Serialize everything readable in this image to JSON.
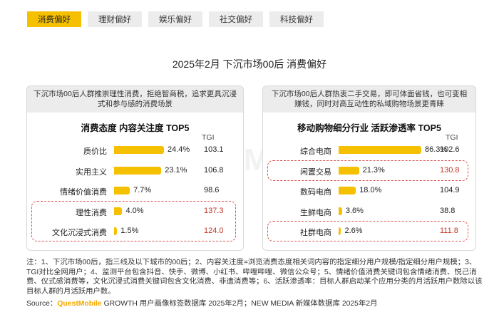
{
  "tabs": [
    {
      "label": "消费偏好",
      "active": true
    },
    {
      "label": "理财偏好",
      "active": false
    },
    {
      "label": "娱乐偏好",
      "active": false
    },
    {
      "label": "社交偏好",
      "active": false
    },
    {
      "label": "科技偏好",
      "active": false
    }
  ],
  "page_title": "2025年2月 下沉市场00后 消费偏好",
  "watermark": "QUESTMOBILE",
  "colors": {
    "accent": "#f5c000",
    "highlight": "#c0392b",
    "panel_header": "#ececec"
  },
  "chart_data": [
    {
      "type": "bar",
      "header": "下沉市场00后人群推崇理性消费，拒绝智商税，追求更具沉浸式和参与感的消费场景",
      "title": "消费态度 内容关注度 TOP5",
      "tgi_label": "TGI",
      "categories": [
        "质价比",
        "实用主义",
        "情绪价值消费",
        "理性消费",
        "文化沉浸式消费"
      ],
      "values": [
        24.4,
        23.1,
        7.7,
        4.0,
        1.5
      ],
      "value_labels": [
        "24.4%",
        "23.1%",
        "7.7%",
        "4.0%",
        "1.5%"
      ],
      "tgi": [
        "103.1",
        "106.8",
        "98.6",
        "137.3",
        "124.0"
      ],
      "highlight": [
        false,
        false,
        false,
        true,
        true
      ],
      "xlim": [
        0,
        24.4
      ]
    },
    {
      "type": "bar",
      "header": "下沉市场00后人群热衷二手交易，即可体面省钱，也可变相赚钱，同时对高互动性的私域购物场景更青睐",
      "title": "移动购物细分行业 活跃渗透率 TOP5",
      "tgi_label": "TGI",
      "categories": [
        "综合电商",
        "闲置交易",
        "数码电商",
        "生鲜电商",
        "社群电商"
      ],
      "values": [
        86.3,
        21.3,
        18.0,
        3.6,
        2.6
      ],
      "value_labels": [
        "86.3%",
        "21.3%",
        "18.0%",
        "3.6%",
        "2.6%"
      ],
      "tgi": [
        "102.6",
        "130.8",
        "104.9",
        "38.8",
        "111.8"
      ],
      "highlight": [
        false,
        true,
        false,
        false,
        true
      ],
      "xlim": [
        0,
        86.3
      ]
    }
  ],
  "notes": "注：1、下沉市场00后，指三线及以下城市的00后；2、内容关注度=浏览消费态度相关词内容的指定细分用户规模/指定细分用户规模；3、TGI对比全网用户；4、监测平台包含抖音、快手、微博、小红书、哔哩哔哩、微信公众号；5、情绪价值消费关键词包含情绪消费、悦己消费、仪式感消费等，文化沉浸式消费关键词包含文化消费、非遗消费等；6、活跃渗透率：目标人群启动某个应用分类的月活跃用户数除以该目标人群的月活跃用户数。",
  "source": {
    "prefix": "Source：",
    "logo": "QuestMobile",
    "text": " GROWTH 用户画像标签数据库 2025年2月；NEW MEDIA 新媒体数据库 2025年2月"
  }
}
